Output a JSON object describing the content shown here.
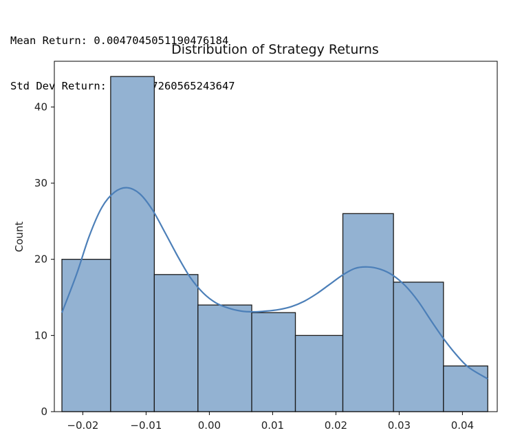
{
  "console_output": {
    "mean_line": "Mean Return: 0.004704505119047618​4",
    "std_line": "Std Dev Return: 0.01897260565243647"
  },
  "chart_data": {
    "type": "histogram",
    "title": "Distribution of Strategy Returns",
    "xlabel": "",
    "ylabel": "Count",
    "xlim": [
      -0.0245,
      0.0455
    ],
    "ylim": [
      0,
      46
    ],
    "bin_edges": [
      -0.0233,
      -0.0156,
      -0.0087,
      -0.0018,
      0.0067,
      0.0136,
      0.0211,
      0.0291,
      0.037,
      0.044
    ],
    "counts": [
      20,
      44,
      18,
      14,
      13,
      10,
      26,
      17,
      6
    ],
    "x_ticks": [
      -0.02,
      -0.01,
      0.0,
      0.01,
      0.02,
      0.03,
      0.04
    ],
    "x_tick_labels": [
      "−0.02",
      "−0.01",
      "0.00",
      "0.01",
      "0.02",
      "0.03",
      "0.04"
    ],
    "y_ticks": [
      0,
      10,
      20,
      30,
      40
    ],
    "y_tick_labels": [
      "0",
      "10",
      "20",
      "30",
      "40"
    ],
    "kde": {
      "x": [
        -0.0233,
        -0.021,
        -0.019,
        -0.017,
        -0.015,
        -0.013,
        -0.011,
        -0.009,
        -0.007,
        -0.005,
        -0.003,
        -0.001,
        0.001,
        0.003,
        0.005,
        0.007,
        0.009,
        0.011,
        0.013,
        0.015,
        0.017,
        0.019,
        0.021,
        0.023,
        0.025,
        0.027,
        0.029,
        0.031,
        0.033,
        0.035,
        0.037,
        0.039,
        0.041,
        0.044
      ],
      "y": [
        13,
        18,
        23,
        26.8,
        28.8,
        29.4,
        28.6,
        26.5,
        23.5,
        20.4,
        17.6,
        15.6,
        14.3,
        13.6,
        13.2,
        13.1,
        13.2,
        13.4,
        13.8,
        14.5,
        15.5,
        16.7,
        17.9,
        18.8,
        19.0,
        18.7,
        17.9,
        16.5,
        14.5,
        12.0,
        9.6,
        7.5,
        5.8,
        4.3
      ]
    },
    "colors": {
      "bar_fill": "#93b2d2",
      "bar_edge": "#1a1a1a",
      "kde_line": "#4c7fb8"
    },
    "grid": false
  }
}
